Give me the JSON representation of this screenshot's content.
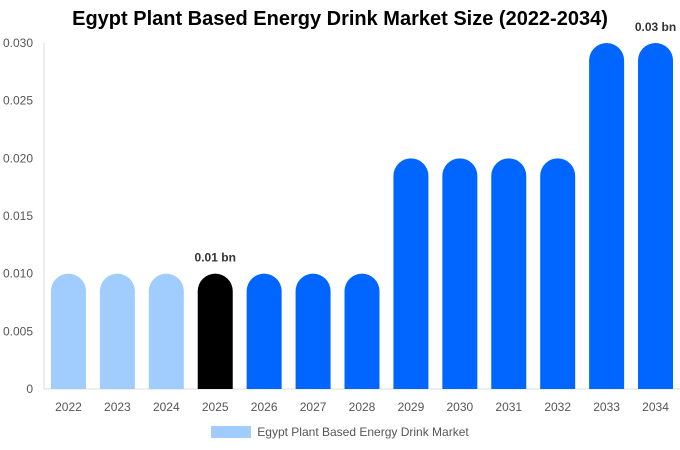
{
  "chart_data": {
    "type": "bar",
    "title": "Egypt Plant Based Energy Drink Market Size (2022-2034)",
    "categories": [
      "2022",
      "2023",
      "2024",
      "2025",
      "2026",
      "2027",
      "2028",
      "2029",
      "2030",
      "2031",
      "2032",
      "2033",
      "2034"
    ],
    "series": [
      {
        "name": "Egypt Plant Based Energy Drink Market",
        "values": [
          0.01,
          0.01,
          0.01,
          0.01,
          0.01,
          0.01,
          0.01,
          0.02,
          0.02,
          0.02,
          0.02,
          0.03,
          0.03
        ]
      }
    ],
    "bar_colors": [
      "#a0cdfd",
      "#a0cdfd",
      "#a0cdfd",
      "#000000",
      "#0066ff",
      "#0066ff",
      "#0066ff",
      "#0066ff",
      "#0066ff",
      "#0066ff",
      "#0066ff",
      "#0066ff",
      "#0066ff"
    ],
    "data_labels": [
      {
        "category": "2025",
        "text": "0.01 bn"
      },
      {
        "category": "2034",
        "text": "0.03 bn"
      }
    ],
    "ylim": [
      0,
      0.03
    ],
    "yticks": [
      "0",
      "0.005",
      "0.010",
      "0.015",
      "0.020",
      "0.025",
      "0.030"
    ],
    "xlabel": "",
    "ylabel": "",
    "grid": false,
    "legend_position": "bottom",
    "legend_color": "#a0cdfd"
  }
}
